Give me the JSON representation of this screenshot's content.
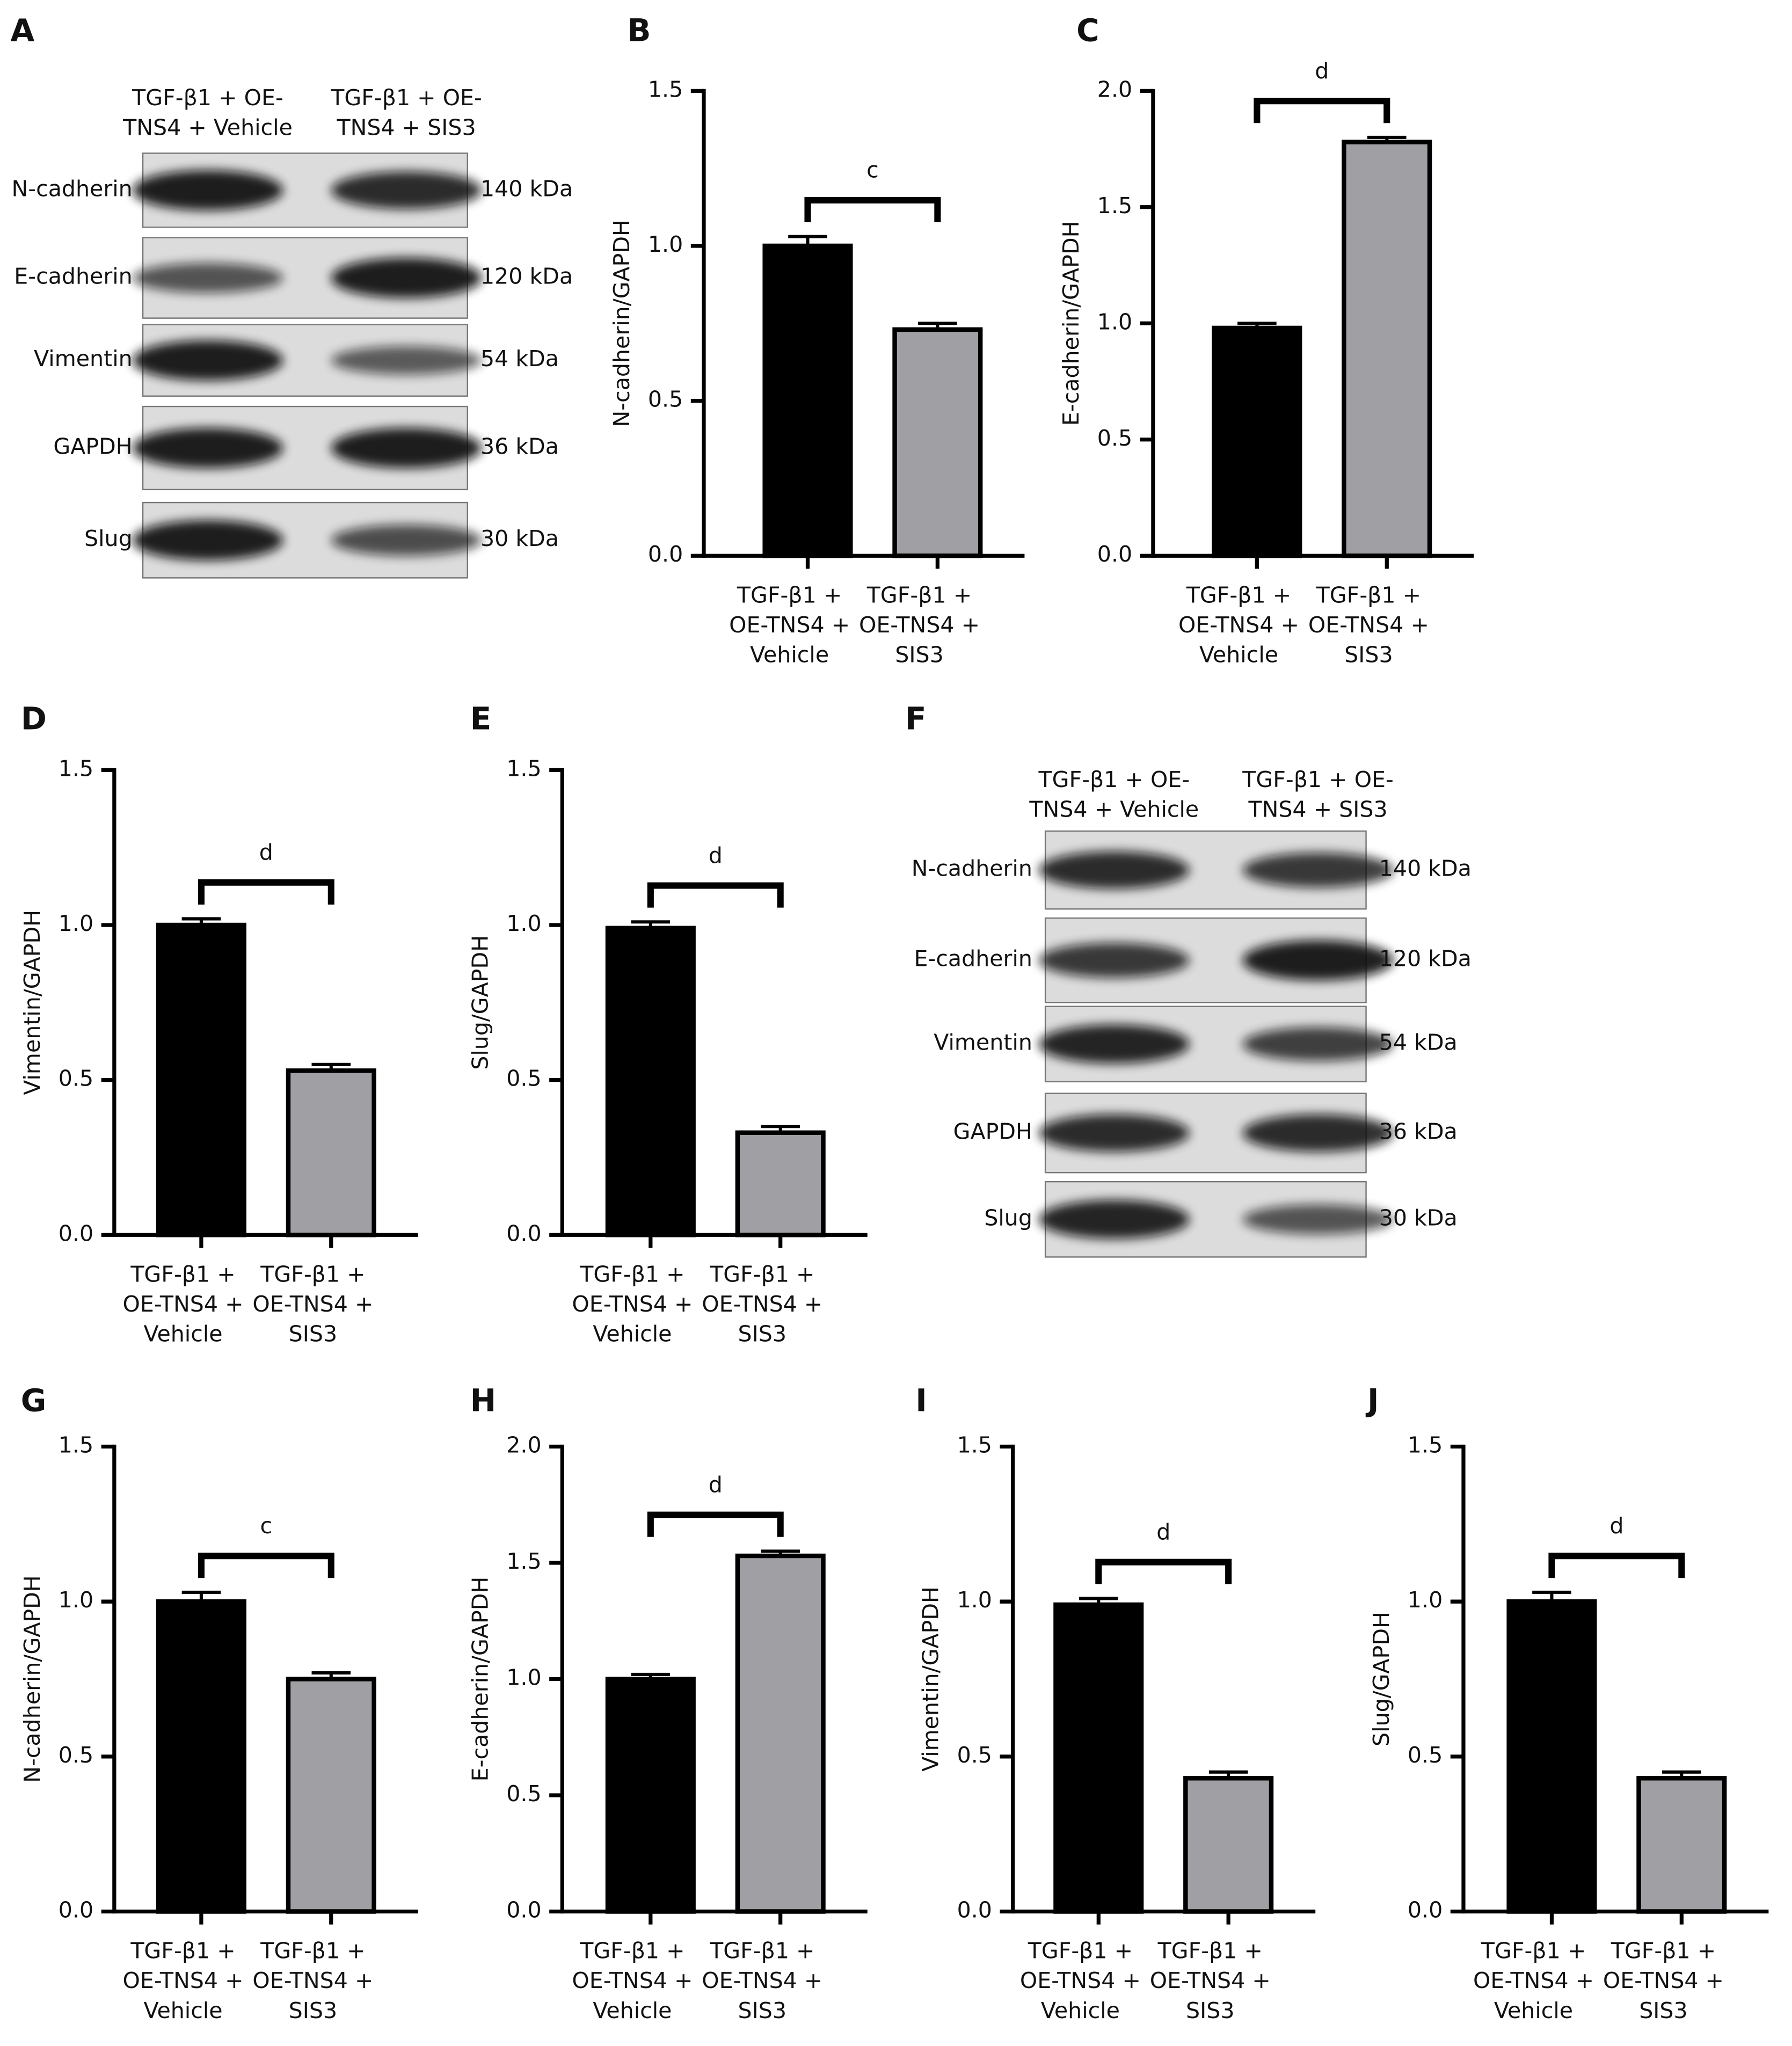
{
  "blots": [
    {
      "panel": "A",
      "lanes": [
        "TGF-β1 + OE-TNS4 + Vehicle",
        "TGF-β1 + OE-TNS4 + SIS3"
      ],
      "rows": [
        {
          "protein": "N-cadherin",
          "size": "140 kDa"
        },
        {
          "protein": "E-cadherin",
          "size": "120 kDa"
        },
        {
          "protein": "Vimentin",
          "size": "54 kDa"
        },
        {
          "protein": "GAPDH",
          "size": "36 kDa"
        },
        {
          "protein": "Slug",
          "size": "30 kDa"
        }
      ]
    },
    {
      "panel": "F",
      "lanes": [
        "TGF-β1 + OE-TNS4 + Vehicle",
        "TGF-β1 + OE-TNS4 + SIS3"
      ],
      "rows": [
        {
          "protein": "N-cadherin",
          "size": "140 kDa"
        },
        {
          "protein": "E-cadherin",
          "size": "120 kDa"
        },
        {
          "protein": "Vimentin",
          "size": "54 kDa"
        },
        {
          "protein": "GAPDH",
          "size": "36 kDa"
        },
        {
          "protein": "Slug",
          "size": "30 kDa"
        }
      ]
    }
  ],
  "chart_data": [
    {
      "type": "bar",
      "panel": "B",
      "y_label": "N-cadherin/GAPDH",
      "categories": [
        "TGF-β1 + OE-TNS4 + Vehicle",
        "TGF-β1 + OE-TNS4 + SIS3"
      ],
      "values": [
        1.0,
        0.73
      ],
      "errors": [
        0.03,
        0.02
      ],
      "colors": [
        "#000000",
        "#a0a0a4"
      ],
      "significance": "c",
      "ylim": [
        0,
        1.5
      ],
      "yticks": [
        {
          "value": 0,
          "label": "0.0"
        },
        {
          "value": 0.5,
          "label": "0.5"
        },
        {
          "value": 1,
          "label": "1.0"
        },
        {
          "value": 1.5,
          "label": "1.5"
        }
      ]
    },
    {
      "type": "bar",
      "panel": "C",
      "y_label": "E-cadherin/GAPDH",
      "categories": [
        "TGF-β1 + OE-TNS4 + Vehicle",
        "TGF-β1 + OE-TNS4 + SIS3"
      ],
      "values": [
        0.98,
        1.78
      ],
      "errors": [
        0.02,
        0.02
      ],
      "colors": [
        "#000000",
        "#a0a0a4"
      ],
      "significance": "d",
      "ylim": [
        0,
        2
      ],
      "yticks": [
        {
          "value": 0,
          "label": "0.0"
        },
        {
          "value": 0.5,
          "label": "0.5"
        },
        {
          "value": 1,
          "label": "1.0"
        },
        {
          "value": 1.5,
          "label": "1.5"
        },
        {
          "value": 2,
          "label": "2.0"
        }
      ]
    },
    {
      "type": "bar",
      "panel": "D",
      "y_label": "Vimentin/GAPDH",
      "categories": [
        "TGF-β1 + OE-TNS4 + Vehicle",
        "TGF-β1 + OE-TNS4 + SIS3"
      ],
      "values": [
        1.0,
        0.53
      ],
      "errors": [
        0.02,
        0.02
      ],
      "colors": [
        "#000000",
        "#a0a0a4"
      ],
      "significance": "d",
      "ylim": [
        0,
        1.5
      ],
      "yticks": [
        {
          "value": 0,
          "label": "0.0"
        },
        {
          "value": 0.5,
          "label": "0.5"
        },
        {
          "value": 1,
          "label": "1.0"
        },
        {
          "value": 1.5,
          "label": "1.5"
        }
      ]
    },
    {
      "type": "bar",
      "panel": "E",
      "y_label": "Slug/GAPDH",
      "categories": [
        "TGF-β1 + OE-TNS4 + Vehicle",
        "TGF-β1 + OE-TNS4 + SIS3"
      ],
      "values": [
        0.99,
        0.33
      ],
      "errors": [
        0.02,
        0.02
      ],
      "colors": [
        "#000000",
        "#a0a0a4"
      ],
      "significance": "d",
      "ylim": [
        0,
        1.5
      ],
      "yticks": [
        {
          "value": 0,
          "label": "0.0"
        },
        {
          "value": 0.5,
          "label": "0.5"
        },
        {
          "value": 1,
          "label": "1.0"
        },
        {
          "value": 1.5,
          "label": "1.5"
        }
      ]
    },
    {
      "type": "bar",
      "panel": "G",
      "y_label": "N-cadherin/GAPDH",
      "categories": [
        "TGF-β1 + OE-TNS4 + Vehicle",
        "TGF-β1 + OE-TNS4 + SIS3"
      ],
      "values": [
        1.0,
        0.75
      ],
      "errors": [
        0.03,
        0.02
      ],
      "colors": [
        "#000000",
        "#a0a0a4"
      ],
      "significance": "c",
      "ylim": [
        0,
        1.5
      ],
      "yticks": [
        {
          "value": 0,
          "label": "0.0"
        },
        {
          "value": 0.5,
          "label": "0.5"
        },
        {
          "value": 1,
          "label": "1.0"
        },
        {
          "value": 1.5,
          "label": "1.5"
        }
      ]
    },
    {
      "type": "bar",
      "panel": "H",
      "y_label": "E-cadherin/GAPDH",
      "categories": [
        "TGF-β1 + OE-TNS4 + Vehicle",
        "TGF-β1 + OE-TNS4 + SIS3"
      ],
      "values": [
        1.0,
        1.53
      ],
      "errors": [
        0.02,
        0.02
      ],
      "colors": [
        "#000000",
        "#a0a0a4"
      ],
      "significance": "d",
      "ylim": [
        0,
        2
      ],
      "yticks": [
        {
          "value": 0,
          "label": "0.0"
        },
        {
          "value": 0.5,
          "label": "0.5"
        },
        {
          "value": 1,
          "label": "1.0"
        },
        {
          "value": 1.5,
          "label": "1.5"
        },
        {
          "value": 2,
          "label": "2.0"
        }
      ]
    },
    {
      "type": "bar",
      "panel": "I",
      "y_label": "Vimentin/GAPDH",
      "categories": [
        "TGF-β1 + OE-TNS4 + Vehicle",
        "TGF-β1 + OE-TNS4 + SIS3"
      ],
      "values": [
        0.99,
        0.43
      ],
      "errors": [
        0.02,
        0.02
      ],
      "colors": [
        "#000000",
        "#a0a0a4"
      ],
      "significance": "d",
      "ylim": [
        0,
        1.5
      ],
      "yticks": [
        {
          "value": 0,
          "label": "0.0"
        },
        {
          "value": 0.5,
          "label": "0.5"
        },
        {
          "value": 1,
          "label": "1.0"
        },
        {
          "value": 1.5,
          "label": "1.5"
        }
      ]
    },
    {
      "type": "bar",
      "panel": "J",
      "y_label": "Slug/GAPDH",
      "categories": [
        "TGF-β1 + OE-TNS4 + Vehicle",
        "TGF-β1 + OE-TNS4 + SIS3"
      ],
      "values": [
        1.0,
        0.43
      ],
      "errors": [
        0.03,
        0.02
      ],
      "colors": [
        "#000000",
        "#a0a0a4"
      ],
      "significance": "d",
      "ylim": [
        0,
        1.5
      ],
      "yticks": [
        {
          "value": 0,
          "label": "0.0"
        },
        {
          "value": 0.5,
          "label": "0.5"
        },
        {
          "value": 1,
          "label": "1.0"
        },
        {
          "value": 1.5,
          "label": "1.5"
        }
      ]
    }
  ]
}
